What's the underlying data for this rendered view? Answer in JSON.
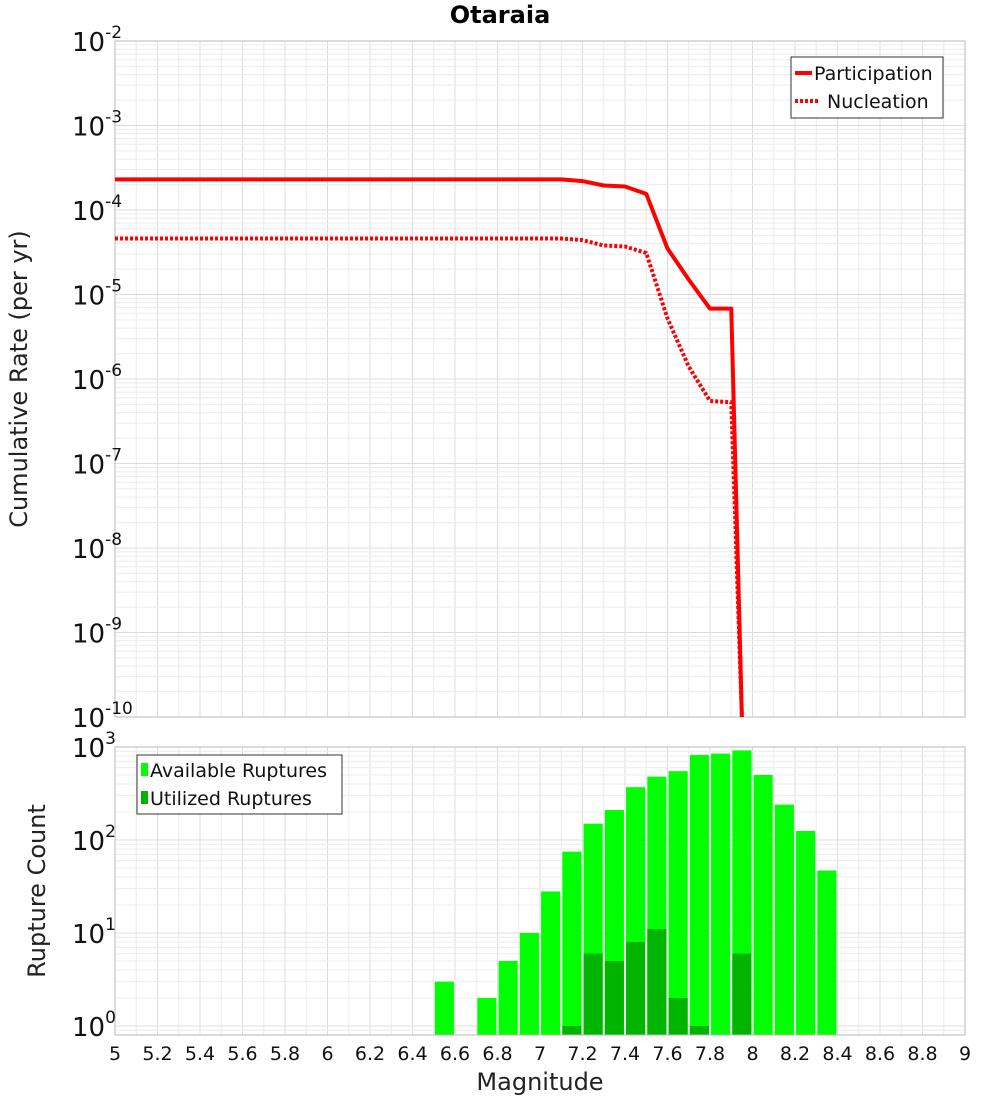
{
  "chart_data": [
    {
      "type": "line",
      "title": "Otaraia",
      "xlabel": "",
      "ylabel": "Cumulative Rate (per yr)",
      "yscale": "log",
      "xlim": [
        5,
        9
      ],
      "ylim": [
        1e-10,
        0.01
      ],
      "ytick_exponents": [
        "-10",
        "-9",
        "-8",
        "-7",
        "-6",
        "-5",
        "-4",
        "-3",
        "-2"
      ],
      "ytick_base": "10",
      "legend_position": "top-right",
      "series": [
        {
          "name": "Participation",
          "style": "solid",
          "color": "#ff0000",
          "x": [
            5.0,
            7.1,
            7.2,
            7.3,
            7.4,
            7.5,
            7.6,
            7.7,
            7.8,
            7.9,
            7.95
          ],
          "y": [
            0.00023,
            0.00023,
            0.00022,
            0.000195,
            0.00019,
            0.000155,
            3.5e-05,
            1.5e-05,
            6.8e-06,
            6.8e-06,
            1e-10
          ]
        },
        {
          "name": "Nucleation",
          "style": "dotted",
          "color": "#ff0000",
          "x": [
            5.0,
            7.1,
            7.2,
            7.3,
            7.4,
            7.5,
            7.6,
            7.7,
            7.8,
            7.9,
            7.95
          ],
          "y": [
            4.6e-05,
            4.6e-05,
            4.4e-05,
            3.8e-05,
            3.7e-05,
            3.1e-05,
            5.2e-06,
            1.4e-06,
            5.5e-07,
            5.3e-07,
            1e-10
          ]
        }
      ]
    },
    {
      "type": "bar",
      "xlabel": "Magnitude",
      "ylabel": "Rupture Count",
      "yscale": "log",
      "xlim": [
        5,
        9
      ],
      "ylim": [
        0.8,
        1000
      ],
      "xticks": [
        "5",
        "5.2",
        "5.4",
        "5.6",
        "5.8",
        "6",
        "6.2",
        "6.4",
        "6.6",
        "6.8",
        "7",
        "7.2",
        "7.4",
        "7.6",
        "7.8",
        "8",
        "8.2",
        "8.4",
        "8.6",
        "8.8",
        "9"
      ],
      "ytick_exponents": [
        "0",
        "1",
        "2",
        "3"
      ],
      "ytick_base": "10",
      "legend_position": "top-left",
      "x": [
        6.55,
        6.75,
        6.85,
        6.95,
        7.05,
        7.15,
        7.25,
        7.35,
        7.45,
        7.55,
        7.65,
        7.75,
        7.85,
        7.95,
        8.05,
        8.15,
        8.25,
        8.35
      ],
      "series": [
        {
          "name": "Available Ruptures",
          "color": "#00ff00",
          "values": [
            3,
            2,
            5,
            10,
            28,
            75,
            150,
            210,
            370,
            480,
            550,
            820,
            850,
            920,
            500,
            240,
            125,
            47
          ]
        },
        {
          "name": "Utilized Ruptures",
          "color": "#00b400",
          "values": [
            0,
            0,
            0,
            0,
            0,
            1,
            6,
            5,
            8,
            11,
            2,
            1,
            0,
            6,
            0,
            0,
            0,
            0
          ]
        }
      ]
    }
  ]
}
